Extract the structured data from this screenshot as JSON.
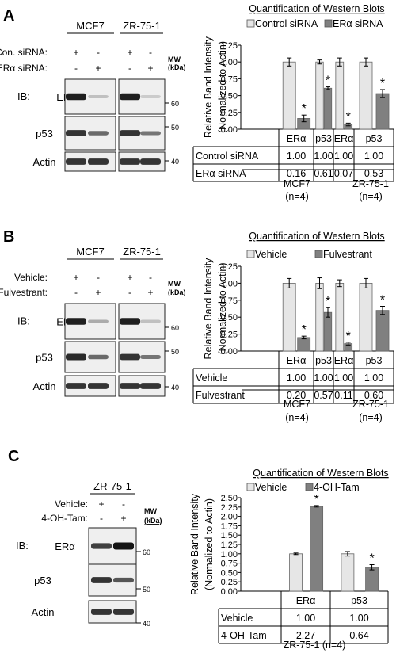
{
  "panels": [
    {
      "letter": "A",
      "blot": {
        "cell_lines": [
          "MCF7",
          "ZR-75-1"
        ],
        "treatments": [
          {
            "label": "Con. siRNA:",
            "signs": [
              "+",
              "-",
              "+",
              "-"
            ]
          },
          {
            "label": "ERα siRNA:",
            "signs": [
              "-",
              "+",
              "-",
              "+"
            ]
          }
        ],
        "ib_label": "IB:",
        "mw_label": "MW",
        "mw_unit": "(kDa)",
        "rows": [
          {
            "protein": "ERα",
            "mw": "60",
            "intensity": [
              0.95,
              0.2,
              0.95,
              0.15
            ]
          },
          {
            "protein": "p53",
            "mw": "50",
            "intensity": [
              0.85,
              0.6,
              0.85,
              0.55
            ]
          },
          {
            "protein": "Actin",
            "mw": "40",
            "intensity": [
              0.85,
              0.85,
              0.85,
              0.85
            ]
          }
        ]
      },
      "chart_title": "Quantification of Western Blots",
      "table_row_labels": [
        "Control siRNA",
        "ERα siRNA"
      ],
      "table_values": [
        [
          "1.00",
          "1.00",
          "1.00",
          "1.00"
        ],
        [
          "0.16",
          "0.61",
          "0.07",
          "0.53"
        ]
      ],
      "groups": [
        {
          "name": "MCF7",
          "n": "(n=4)"
        },
        {
          "name": "ZR-75-1",
          "n": "(n=4)"
        }
      ]
    },
    {
      "letter": "B",
      "blot": {
        "cell_lines": [
          "MCF7",
          "ZR-75-1"
        ],
        "treatments": [
          {
            "label": "Vehicle:",
            "signs": [
              "+",
              "-",
              "+",
              "-"
            ]
          },
          {
            "label": "Fulvestrant:",
            "signs": [
              "-",
              "+",
              "-",
              "+"
            ]
          }
        ],
        "ib_label": "IB:",
        "mw_label": "MW",
        "mw_unit": "(kDa)",
        "rows": [
          {
            "protein": "ERα",
            "mw": "60",
            "intensity": [
              0.95,
              0.3,
              0.95,
              0.2
            ]
          },
          {
            "protein": "p53",
            "mw": "50",
            "intensity": [
              0.9,
              0.6,
              0.85,
              0.55
            ]
          },
          {
            "protein": "Actin",
            "mw": "40",
            "intensity": [
              0.85,
              0.85,
              0.85,
              0.85
            ]
          }
        ]
      },
      "chart_title": "Quantification of Western Blots",
      "table_row_labels": [
        "Vehicle",
        "Fulvestrant"
      ],
      "table_values": [
        [
          "1.00",
          "1.00",
          "1.00",
          "1.00"
        ],
        [
          "0.20",
          "0.57",
          "0.11",
          "0.60"
        ]
      ],
      "groups": [
        {
          "name": "MCF7",
          "n": "(n=4)"
        },
        {
          "name": "ZR-75-1",
          "n": "(n=4)"
        }
      ]
    },
    {
      "letter": "C",
      "blot": {
        "cell_lines": [
          "ZR-75-1"
        ],
        "treatments": [
          {
            "label": "Vehicle:",
            "signs": [
              "+",
              "-"
            ]
          },
          {
            "label": "4-OH-Tam:",
            "signs": [
              "-",
              "+"
            ]
          }
        ],
        "ib_label": "IB:",
        "mw_label": "MW",
        "mw_unit": "(kDa)",
        "rows": [
          {
            "protein": "ERα",
            "mw": "60",
            "intensity": [
              0.8,
              1.0
            ]
          },
          {
            "protein": "p53",
            "mw": "50",
            "intensity": [
              0.85,
              0.7
            ]
          },
          {
            "protein": "Actin",
            "mw": "40",
            "intensity": [
              0.85,
              0.85
            ]
          }
        ]
      },
      "chart_title": "Quantification of Western Blots",
      "table_row_labels": [
        "Vehicle",
        "4-OH-Tam"
      ],
      "table_values": [
        [
          "1.00",
          "1.00"
        ],
        [
          "2.27",
          "0.64"
        ]
      ],
      "groups": [
        {
          "name": "ZR-75-1 (n=4)",
          "n": ""
        }
      ]
    }
  ],
  "chart_data": [
    {
      "type": "bar",
      "title": "Quantification of Western Blots",
      "ylabel": "Relative Band Intensity (Normalized to Actin)",
      "categories": [
        "ERα",
        "p53",
        "ERα",
        "p53"
      ],
      "series": [
        {
          "name": "Control siRNA",
          "values": [
            1.0,
            1.0,
            1.0,
            1.0
          ],
          "errors": [
            0.06,
            0.03,
            0.06,
            0.06
          ],
          "color": "#e6e6e6"
        },
        {
          "name": "ERα siRNA",
          "values": [
            0.16,
            0.61,
            0.07,
            0.53
          ],
          "errors": [
            0.05,
            0.02,
            0.02,
            0.06
          ],
          "color": "#808080"
        }
      ],
      "ylim": [
        0,
        1.25
      ],
      "yticks": [
        "0.00",
        "0.25",
        "0.50",
        "0.75",
        "1.00",
        "1.25"
      ],
      "significant": [
        false,
        true,
        false,
        true,
        false,
        true,
        false,
        true
      ],
      "legend": "top"
    },
    {
      "type": "bar",
      "title": "Quantification of Western Blots",
      "ylabel": "Relative Band Intensity (Normalized to Actin)",
      "categories": [
        "ERα",
        "p53",
        "ERα",
        "p53"
      ],
      "series": [
        {
          "name": "Vehicle",
          "values": [
            1.0,
            1.0,
            1.0,
            1.0
          ],
          "errors": [
            0.07,
            0.08,
            0.05,
            0.07
          ],
          "color": "#e6e6e6"
        },
        {
          "name": "Fulvestrant",
          "values": [
            0.2,
            0.57,
            0.11,
            0.6
          ],
          "errors": [
            0.02,
            0.07,
            0.02,
            0.06
          ],
          "color": "#808080"
        }
      ],
      "ylim": [
        0,
        1.25
      ],
      "yticks": [
        "0.00",
        "0.25",
        "0.50",
        "0.75",
        "1.00",
        "1.25"
      ],
      "significant": [
        false,
        true,
        false,
        true,
        false,
        true,
        false,
        true
      ],
      "legend": "top"
    },
    {
      "type": "bar",
      "title": "Quantification of Western Blots",
      "ylabel": "Relative Band Intensity (Normalized to Actin)",
      "categories": [
        "ERα",
        "p53"
      ],
      "series": [
        {
          "name": "Vehicle",
          "values": [
            1.0,
            1.0
          ],
          "errors": [
            0.02,
            0.06
          ],
          "color": "#e6e6e6"
        },
        {
          "name": "4-OH-Tam",
          "values": [
            2.27,
            0.64
          ],
          "errors": [
            0.02,
            0.07
          ],
          "color": "#808080"
        }
      ],
      "ylim": [
        0,
        2.5
      ],
      "yticks": [
        "0.00",
        "0.25",
        "0.50",
        "0.75",
        "1.00",
        "1.25",
        "1.50",
        "1.75",
        "2.00",
        "2.25",
        "2.50"
      ],
      "significant": [
        false,
        true,
        false,
        true
      ],
      "legend": "top"
    }
  ]
}
